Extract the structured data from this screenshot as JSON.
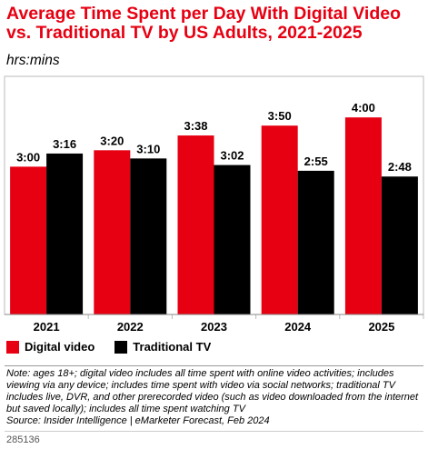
{
  "chart_data": {
    "type": "bar",
    "title": "Average Time Spent per Day With Digital Video vs. Traditional TV by US Adults, 2021-2025",
    "subtitle": "hrs:mins",
    "categories": [
      "2021",
      "2022",
      "2023",
      "2024",
      "2025"
    ],
    "series": [
      {
        "name": "Digital video",
        "color": "#e60012",
        "values": [
          180,
          200,
          218,
          230,
          240
        ],
        "labels": [
          "3:00",
          "3:20",
          "3:38",
          "3:50",
          "4:00"
        ]
      },
      {
        "name": "Traditional TV",
        "color": "#000000",
        "values": [
          196,
          190,
          182,
          175,
          168
        ],
        "labels": [
          "3:16",
          "3:10",
          "3:02",
          "2:55",
          "2:48"
        ]
      }
    ],
    "ylim": [
      0,
      290
    ],
    "grid": false,
    "legend_position": "bottom-left",
    "note": "Note: ages 18+; digital video includes all time spent with online video activities; includes viewing via any device; includes time spent with video via social networks; traditional TV includes live, DVR, and other prerecorded video (such as video downloaded from the internet but saved locally); includes all time spent watching TV",
    "source": "Source: Insider Intelligence | eMarketer Forecast, Feb 2024",
    "tag": "285136"
  }
}
